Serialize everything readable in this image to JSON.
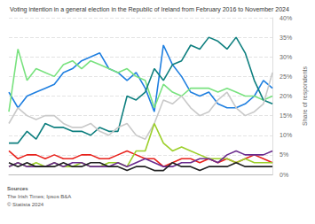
{
  "chart_data": {
    "type": "line",
    "title": "Voting intention in a general election in the Republic of Ireland from February 2016 to November 2024",
    "y_label": "Share of respondents",
    "annotations": [
      "Sources",
      "The Irish Times; Ipsos B&A",
      "© Statista 2024"
    ],
    "categories": [
      null,
      null,
      null,
      null,
      null,
      null,
      null,
      null,
      null,
      null,
      null,
      null,
      null,
      null,
      null,
      null,
      null,
      null,
      null,
      null,
      null,
      null,
      null,
      null,
      null,
      null,
      null,
      null,
      null,
      null
    ],
    "tick_labels": "y",
    "grid": true,
    "ylim": [
      0,
      40
    ],
    "yticks": [
      {
        "value": 0,
        "label": "0%"
      },
      {
        "value": 5,
        "label": "5%"
      },
      {
        "value": 10,
        "label": "10%"
      },
      {
        "value": 15,
        "label": "15%"
      },
      {
        "value": 20,
        "label": "20%"
      },
      {
        "value": 25,
        "label": "25%"
      },
      {
        "value": 30,
        "label": "30%"
      },
      {
        "value": 35,
        "label": "35%"
      },
      {
        "value": 40,
        "label": "40%"
      }
    ],
    "series": [
      {
        "color": "#1f7fe0",
        "values": [
          21,
          17,
          20,
          21,
          22,
          23,
          26,
          27,
          29,
          30,
          31,
          27,
          26,
          24,
          26,
          22,
          16,
          33,
          28,
          25,
          21,
          20,
          21,
          18,
          17,
          17,
          18,
          20,
          24,
          22
        ]
      },
      {
        "color": "#79e27f",
        "values": [
          16,
          32,
          24,
          27,
          26,
          25,
          28,
          29,
          27,
          29,
          28,
          27,
          26,
          27,
          25,
          24,
          17,
          23,
          21,
          20,
          22,
          22,
          22,
          21,
          22,
          21,
          20,
          20,
          19,
          20
        ]
      },
      {
        "color": "#0e7f7f",
        "values": [
          8,
          8,
          11,
          9,
          13,
          12,
          12,
          11,
          11,
          10,
          12,
          11,
          11,
          20,
          19,
          21,
          27,
          24,
          28,
          29,
          33,
          32,
          35,
          34,
          32,
          35,
          31,
          24,
          19,
          18
        ]
      },
      {
        "color": "#c9c9c9",
        "values": [
          13,
          17,
          15,
          14,
          15,
          15,
          13,
          12,
          12,
          13,
          11,
          10,
          12,
          13,
          10,
          9,
          13,
          19,
          18,
          20,
          17,
          15,
          16,
          19,
          21,
          17,
          15,
          16,
          18,
          26
        ]
      },
      {
        "color": "#e8221c",
        "values": [
          6,
          4,
          5,
          5,
          4,
          5,
          4,
          4,
          5,
          5,
          4,
          4,
          5,
          6,
          5,
          4,
          4,
          2,
          3,
          4,
          4,
          3,
          4,
          3,
          4,
          3,
          4,
          5,
          4,
          3
        ]
      },
      {
        "color": "#9ccf2a",
        "values": [
          2,
          3,
          2,
          3,
          2,
          3,
          2,
          2,
          3,
          2,
          2,
          3,
          3,
          2,
          6,
          6,
          13,
          8,
          6,
          7,
          6,
          5,
          4,
          4,
          4,
          3,
          4,
          3,
          3,
          3
        ]
      },
      {
        "color": "#6b2c8e",
        "values": [
          2,
          3,
          2,
          2,
          2,
          3,
          2,
          3,
          3,
          2,
          2,
          2,
          3,
          2,
          3,
          4,
          3,
          2,
          2,
          3,
          3,
          4,
          4,
          3,
          5,
          6,
          5,
          5,
          5,
          6
        ]
      },
      {
        "color": "#222222",
        "values": [
          3,
          2,
          3,
          2,
          2,
          2,
          3,
          2,
          2,
          3,
          3,
          2,
          2,
          1,
          2,
          2,
          1,
          1,
          3,
          2,
          2,
          1,
          2,
          2,
          2,
          3,
          2,
          2,
          2,
          2
        ]
      }
    ]
  }
}
